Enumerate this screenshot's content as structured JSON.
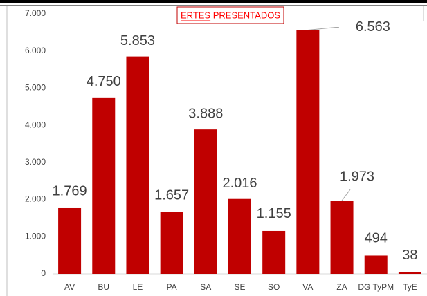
{
  "chart_data": {
    "type": "bar",
    "title": "ERTES PRESENTADOS",
    "categories": [
      "AV",
      "BU",
      "LE",
      "PA",
      "SA",
      "SE",
      "SO",
      "VA",
      "ZA",
      "DG TyPM",
      "TyE"
    ],
    "values": [
      1769,
      4750,
      5853,
      1657,
      3888,
      2016,
      1155,
      6563,
      1973,
      494,
      38
    ],
    "value_labels": [
      "1.769",
      "4.750",
      "5.853",
      "1.657",
      "3.888",
      "2.016",
      "1.155",
      "6.563",
      "1.973",
      "494",
      "38"
    ],
    "color": "#c00000",
    "ylim": [
      0,
      7000
    ],
    "yticks": [
      0,
      {
        "value": 1000,
        "label": "1.000"
      },
      {
        "value": 2000,
        "label": "2.000"
      },
      {
        "value": 3000,
        "label": "3.000"
      },
      {
        "value": 4000,
        "label": "4.000"
      },
      {
        "value": 5000,
        "label": "5.000"
      },
      {
        "value": 6000,
        "label": "6.000"
      },
      {
        "value": 7000,
        "label": "7.000"
      }
    ],
    "grid": false
  }
}
